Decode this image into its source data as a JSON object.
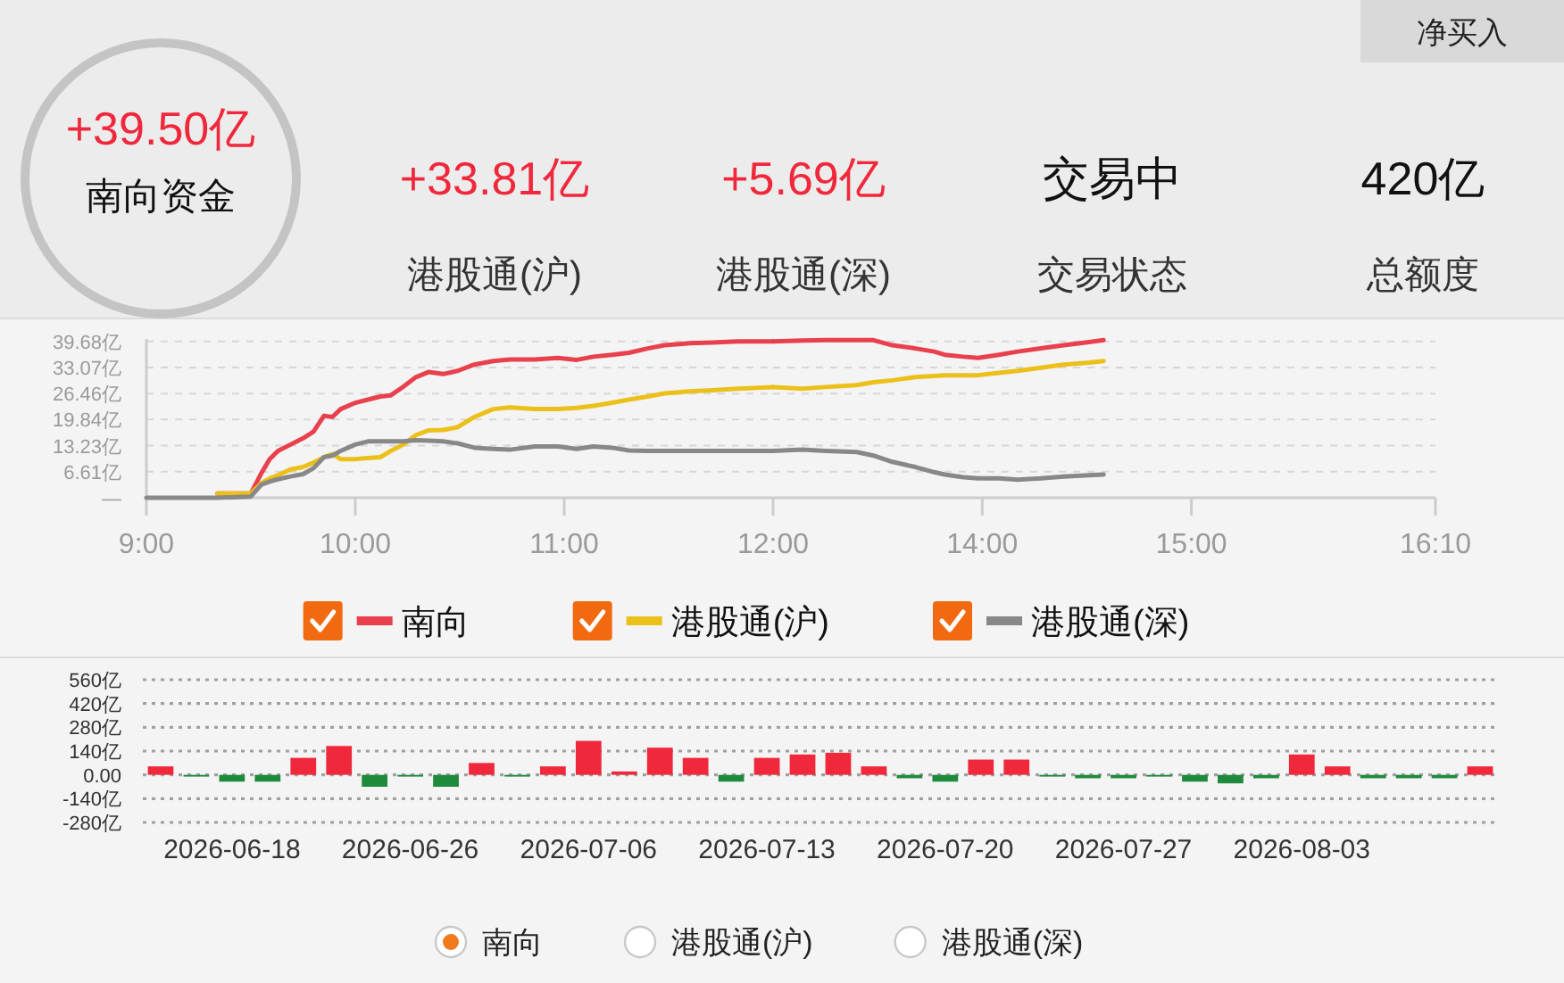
{
  "chart_data": [
    {
      "type": "other",
      "annotations": [
        "净买入",
        "+39.50亿",
        "南向资金",
        "+33.81亿",
        "港股通(沪)",
        "+5.69亿",
        "港股通(深)",
        "交易中",
        "交易状态",
        "420亿",
        "总额度"
      ]
    },
    {
      "type": "line",
      "x": [
        9.0,
        9.32,
        9.34,
        9.5,
        9.55,
        9.59,
        9.63,
        9.69,
        9.75,
        9.8,
        9.85,
        9.89,
        9.93,
        10.0,
        10.06,
        10.12,
        10.17,
        10.23,
        10.29,
        10.35,
        10.42,
        10.49,
        10.57,
        10.66,
        10.74,
        10.86,
        10.97,
        11.06,
        11.14,
        11.23,
        11.31,
        11.4,
        11.48,
        11.6,
        11.71,
        11.83,
        12.0
      ],
      "series": [
        {
          "name": "南向",
          "color": "#e8404c",
          "values": [
            null,
            null,
            1.1,
            1.1,
            6.2,
            9.8,
            11.9,
            13.5,
            15.1,
            16.8,
            20.8,
            20.5,
            22.5,
            24.1,
            24.9,
            25.7,
            26.0,
            28.2,
            30.6,
            31.9,
            31.4,
            32.2,
            33.8,
            34.7,
            35.1,
            35.1,
            35.5,
            35.0,
            35.8,
            36.3,
            36.8,
            37.9,
            38.7,
            39.2,
            39.4,
            39.7,
            39.7
          ]
        },
        {
          "name": "港股通(沪)",
          "color": "#ecc01a",
          "values": [
            null,
            null,
            1.1,
            1.1,
            3.7,
            4.9,
            5.7,
            7.2,
            7.8,
            8.9,
            10.3,
            11.1,
            9.8,
            9.8,
            10.1,
            10.3,
            11.9,
            13.5,
            15.9,
            17.1,
            17.2,
            17.9,
            20.5,
            22.5,
            22.9,
            22.5,
            22.5,
            22.8,
            23.3,
            24.1,
            24.9,
            25.7,
            26.5,
            27.0,
            27.3,
            27.7,
            28.1
          ]
        },
        {
          "name": "港股通(深)",
          "color": "#888888",
          "values": [
            0,
            0,
            0,
            0.3,
            3.3,
            4.1,
            4.7,
            5.4,
            6.0,
            7.5,
            10.3,
            10.7,
            11.9,
            13.5,
            14.3,
            14.3,
            14.3,
            14.3,
            14.6,
            14.5,
            14.3,
            13.8,
            12.7,
            12.4,
            12.2,
            13.0,
            13.0,
            12.4,
            13.0,
            12.7,
            12.0,
            11.9,
            11.9,
            11.9,
            11.9,
            11.9,
            11.9
          ]
        }
      ],
      "xlim": [
        9,
        12
      ],
      "xticks": [
        {
          "value": 9,
          "label": "9:00"
        },
        {
          "value": 10,
          "label": "10:00"
        },
        {
          "value": 11,
          "label": "11:00"
        },
        {
          "value": 12,
          "label": "12:00"
        }
      ],
      "ylim": [
        0,
        40.3
      ],
      "yticks": [
        {
          "value": 0,
          "label": "—"
        },
        {
          "value": 6.61,
          "label": "6.61亿"
        },
        {
          "value": 13.23,
          "label": "13.23亿"
        },
        {
          "value": 19.84,
          "label": "19.84亿"
        },
        {
          "value": 26.46,
          "label": "26.46亿"
        },
        {
          "value": 33.07,
          "label": "33.07亿"
        },
        {
          "value": 39.68,
          "label": "39.68亿"
        }
      ],
      "grid": "y",
      "legend": "bottom"
    },
    {
      "type": "line",
      "x": [
        13.0,
        13.14,
        13.25,
        13.4,
        13.48,
        13.57,
        13.68,
        13.77,
        13.82,
        13.91,
        13.98,
        14.08,
        14.17,
        14.28,
        14.39,
        14.51,
        14.58
      ],
      "series": [
        {
          "color": "#e8404c",
          "values": [
            39.7,
            39.9,
            40.0,
            40.0,
            40.0,
            38.7,
            37.9,
            37.1,
            36.3,
            35.8,
            35.5,
            36.3,
            37.1,
            37.9,
            38.7,
            39.5,
            40.0
          ]
        },
        {
          "color": "#ecc01a",
          "values": [
            28.1,
            27.7,
            28.1,
            28.6,
            29.3,
            29.8,
            30.6,
            30.9,
            31.1,
            31.1,
            31.1,
            31.7,
            32.2,
            33.0,
            33.8,
            34.3,
            34.7
          ]
        },
        {
          "color": "#888888",
          "values": [
            11.9,
            12.2,
            11.9,
            11.6,
            10.7,
            9.1,
            7.8,
            6.5,
            5.9,
            5.2,
            4.9,
            4.9,
            4.6,
            4.9,
            5.4,
            5.7,
            5.9
          ]
        }
      ],
      "xlim": [
        13,
        16.1667
      ],
      "xticks": [
        {
          "value": 14,
          "label": "14:00"
        },
        {
          "value": 15,
          "label": "15:00"
        },
        {
          "value": 16.1667,
          "label": "16:10"
        }
      ],
      "ylim": [
        0,
        40.3
      ],
      "yticks": [
        0,
        6.61,
        13.23,
        19.84,
        26.46,
        33.07,
        39.68
      ],
      "tick_labels": "x",
      "grid": "y"
    },
    {
      "type": "bar",
      "categories": [
        null,
        null,
        "2026-06-18",
        null,
        null,
        null,
        null,
        "2026-06-26",
        null,
        null,
        null,
        null,
        "2026-07-06",
        null,
        null,
        null,
        null,
        "2026-07-13",
        null,
        null,
        null,
        null,
        "2026-07-20",
        null,
        null,
        null,
        null,
        "2026-07-27",
        null,
        null,
        null,
        null,
        "2026-08-03",
        null,
        null,
        null,
        null,
        null
      ],
      "series": [
        {
          "name": "南向",
          "colors": [
            "#f0283c",
            "#1e8a3c",
            "#1e8a3c",
            "#1e8a3c",
            "#f0283c",
            "#f0283c",
            "#1e8a3c",
            "#1e8a3c",
            "#1e8a3c",
            "#f0283c",
            "#1e8a3c",
            "#f0283c",
            "#f0283c",
            "#f0283c",
            "#f0283c",
            "#f0283c",
            "#1e8a3c",
            "#f0283c",
            "#f0283c",
            "#f0283c",
            "#f0283c",
            "#1e8a3c",
            "#1e8a3c",
            "#f0283c",
            "#f0283c",
            "#1e8a3c",
            "#1e8a3c",
            "#1e8a3c",
            "#1e8a3c",
            "#1e8a3c",
            "#1e8a3c",
            "#1e8a3c",
            "#f0283c",
            "#f0283c",
            "#1e8a3c",
            "#1e8a3c",
            "#1e8a3c",
            "#f0283c"
          ],
          "values": [
            50,
            -10,
            -40,
            -40,
            100,
            170,
            -70,
            -10,
            -70,
            70,
            -10,
            50,
            200,
            20,
            160,
            100,
            -40,
            100,
            120,
            130,
            50,
            -20,
            -40,
            90,
            90,
            -10,
            -20,
            -20,
            -10,
            -40,
            -50,
            -20,
            120,
            50,
            -20,
            -20,
            -20,
            50
          ]
        }
      ],
      "ylim": [
        -280,
        560
      ],
      "yticks": [
        {
          "value": 560,
          "label": "560亿"
        },
        {
          "value": 420,
          "label": "420亿"
        },
        {
          "value": 280,
          "label": "280亿"
        },
        {
          "value": 140,
          "label": "140亿"
        },
        {
          "value": 0,
          "label": "0.00"
        },
        {
          "value": -140,
          "label": "-140亿"
        },
        {
          "value": -280,
          "label": "-280亿"
        }
      ],
      "grid": "y",
      "legend": "bottom",
      "annotations": [
        "港股通(沪)",
        "港股通(深)"
      ]
    }
  ]
}
